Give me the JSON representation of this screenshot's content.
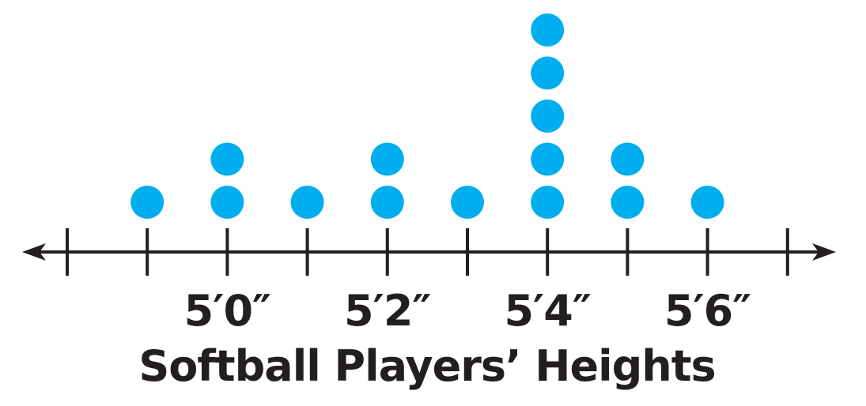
{
  "chart_data": {
    "type": "dot_plot",
    "title": "",
    "xlabel": "Softball Players’ Heights",
    "ylabel": "",
    "x_unit": "inches",
    "xlim": [
      58,
      67
    ],
    "x": [
      59,
      60,
      61,
      62,
      63,
      64,
      65,
      66
    ],
    "counts": [
      1,
      2,
      1,
      2,
      1,
      5,
      2,
      1
    ],
    "tick_values": [
      58,
      59,
      60,
      61,
      62,
      63,
      64,
      65,
      66,
      67
    ],
    "tick_labels": [
      {
        "value": 60,
        "label": "5′0″"
      },
      {
        "value": 62,
        "label": "5′2″"
      },
      {
        "value": 64,
        "label": "5′4″"
      },
      {
        "value": 66,
        "label": "5′6″"
      }
    ],
    "axis_arrows": "both",
    "grid": false,
    "legend": "none",
    "colors": {
      "dot": "#00aeef",
      "axis": "#231f20",
      "text": "#231f20"
    }
  }
}
